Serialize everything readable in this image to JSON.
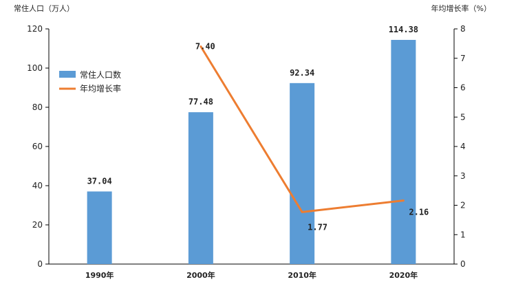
{
  "chart_data": {
    "type": "bar",
    "categories": [
      "1990年",
      "2000年",
      "2010年",
      "2020年"
    ],
    "series": [
      {
        "name": "常住人口数",
        "type": "bar",
        "axis": "left",
        "color": "#5b9bd5",
        "values": [
          37.04,
          77.48,
          92.34,
          114.38
        ],
        "labels": [
          "37.04",
          "77.48",
          "92.34",
          "114.38"
        ]
      },
      {
        "name": "年均增长率",
        "type": "line",
        "axis": "right",
        "color": "#ed7d31",
        "values": [
          null,
          7.4,
          1.77,
          2.16
        ],
        "labels": [
          "",
          "7.40",
          "1.77",
          "2.16"
        ]
      }
    ],
    "ylabel_left": "常住人口（万人）",
    "ylabel_right": "年均增长率（%）",
    "ylim_left": [
      0,
      120
    ],
    "yticks_left": [
      "0",
      "20",
      "40",
      "60",
      "80",
      "100",
      "120"
    ],
    "ylim_right": [
      0,
      8
    ],
    "yticks_right": [
      "0",
      "1",
      "2",
      "3",
      "4",
      "5",
      "6",
      "7",
      "8"
    ],
    "grid": false,
    "legend_position": "upper-left"
  }
}
